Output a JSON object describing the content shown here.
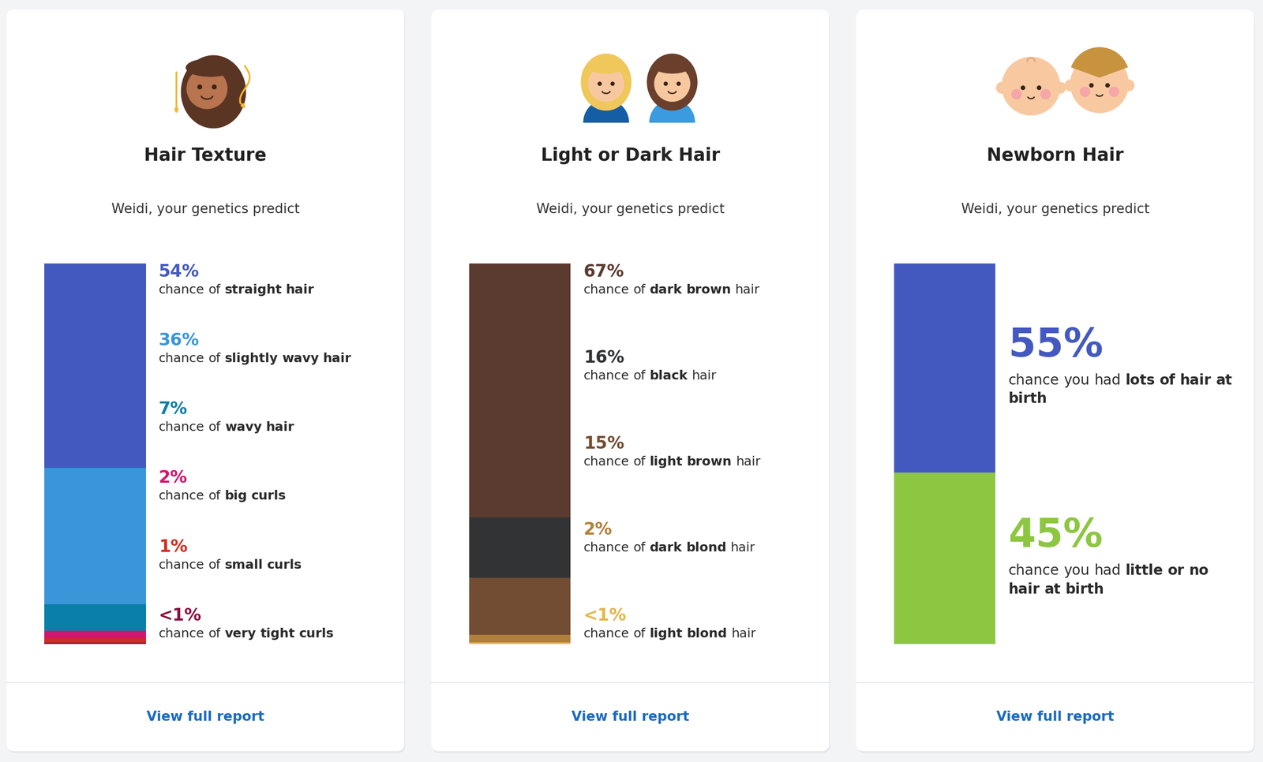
{
  "chart_data": [
    {
      "type": "bar",
      "stacked": true,
      "data_labels": true,
      "tick_labels": false,
      "title": "Hair Texture",
      "subtitle": "Weidi, your genetics predict",
      "footer": "View full report",
      "series": [
        {
          "name": "chance of straight hair",
          "emphasis": "straight hair",
          "color": "#4459c0",
          "values": [
            54
          ],
          "value_labels": [
            "54%"
          ]
        },
        {
          "name": "chance of slightly wavy hair",
          "emphasis": "slightly wavy hair",
          "color": "#3a96d9",
          "values": [
            36
          ],
          "value_labels": [
            "36%"
          ]
        },
        {
          "name": "chance of wavy hair",
          "emphasis": "wavy hair",
          "color": "#0a7fa8",
          "values": [
            7
          ],
          "value_labels": [
            "7%"
          ]
        },
        {
          "name": "chance of big curls",
          "emphasis": "big curls",
          "color": "#d0186c",
          "values": [
            2
          ],
          "value_labels": [
            "2%"
          ]
        },
        {
          "name": "chance of small curls",
          "emphasis": "small curls",
          "color": "#cf2e1c",
          "values": [
            1
          ],
          "value_labels": [
            "1%"
          ]
        },
        {
          "name": "chance of very tight curls",
          "emphasis": "very tight curls",
          "color": "#8c1140",
          "values": [
            0.5
          ],
          "value_labels": [
            "<1%"
          ]
        }
      ]
    },
    {
      "type": "bar",
      "stacked": true,
      "data_labels": true,
      "tick_labels": false,
      "title": "Light or Dark Hair",
      "subtitle": "Weidi, your genetics predict",
      "footer": "View full report",
      "series": [
        {
          "name": "chance of dark brown hair",
          "emphasis": "dark brown",
          "color": "#5b3b2f",
          "values": [
            67
          ],
          "value_labels": [
            "67%"
          ]
        },
        {
          "name": "chance of black hair",
          "emphasis": "black",
          "color": "#323335",
          "values": [
            16
          ],
          "value_labels": [
            "16%"
          ]
        },
        {
          "name": "chance of light brown hair",
          "emphasis": "light brown",
          "color": "#724d34",
          "values": [
            15
          ],
          "value_labels": [
            "15%"
          ]
        },
        {
          "name": "chance of dark blond hair",
          "emphasis": "dark blond",
          "color": "#b0813c",
          "values": [
            2
          ],
          "value_labels": [
            "2%"
          ]
        },
        {
          "name": "chance of light blond hair",
          "emphasis": "light blond",
          "color": "#e6b54a",
          "values": [
            0.5
          ],
          "value_labels": [
            "<1%"
          ]
        }
      ]
    },
    {
      "type": "bar",
      "stacked": true,
      "data_labels": true,
      "tick_labels": false,
      "title": "Newborn Hair",
      "subtitle": "Weidi, your genetics predict",
      "footer": "View full report",
      "series": [
        {
          "name": "chance you had lots of hair at birth",
          "emphasis": "lots of hair at birth",
          "color": "#4459c0",
          "values": [
            55
          ],
          "value_labels": [
            "55%"
          ]
        },
        {
          "name": "chance you had little or no hair at birth",
          "emphasis": "little or no hair at birth",
          "color": "#8dc641",
          "values": [
            45
          ],
          "value_labels": [
            "45%"
          ]
        }
      ]
    }
  ]
}
